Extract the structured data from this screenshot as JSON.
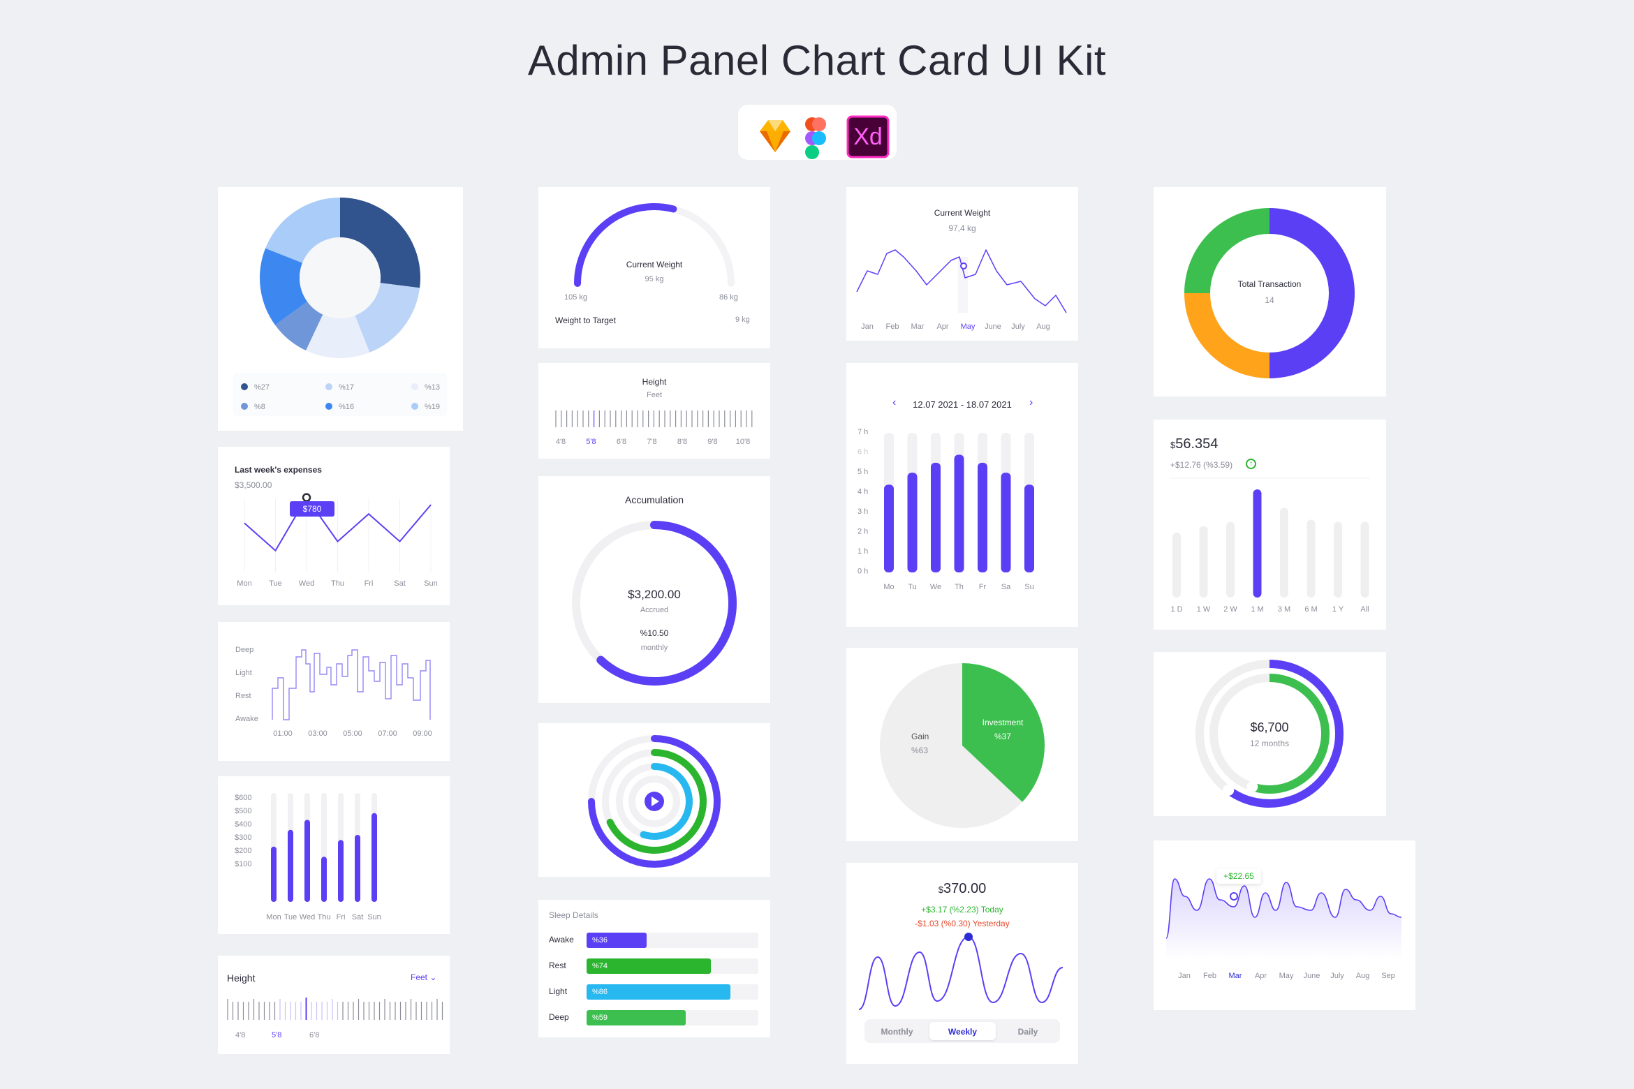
{
  "page": {
    "title": "Admin Panel Chart Card UI Kit",
    "tools": [
      "sketch-icon",
      "figma-icon",
      "xd-icon"
    ],
    "xd_label": "Xd"
  },
  "colors": {
    "accent": "#5b3ff5",
    "green": "#3dbf4f",
    "orange": "#ffa31a",
    "cyan": "#27b8f0",
    "gray": "#efefef"
  },
  "donut": {
    "chart_data": {
      "type": "pie",
      "values": [
        27,
        17,
        13,
        8,
        16,
        19
      ],
      "labels": [
        "%27",
        "%17",
        "%13",
        "%8",
        "%16",
        "%19"
      ],
      "colors": [
        "#31548f",
        "#bcd4f7",
        "#e9eefb",
        "#6f96d8",
        "#3d88f0",
        "#a9ccf8"
      ]
    },
    "legend": [
      "%27",
      "%17",
      "%13",
      "%8",
      "%16",
      "%19"
    ]
  },
  "expenses": {
    "title": "Last week's expenses",
    "amount": "$3,500.00",
    "tooltip": "$780",
    "days": [
      "Mon",
      "Tue",
      "Wed",
      "Thu",
      "Fri",
      "Sat",
      "Sun"
    ],
    "chart_data": {
      "type": "line",
      "x": [
        "Mon",
        "Tue",
        "Wed",
        "Thu",
        "Fri",
        "Sat",
        "Sun"
      ],
      "values": [
        500,
        200,
        780,
        300,
        600,
        300,
        700
      ]
    }
  },
  "sleep_step": {
    "levels": [
      "Deep",
      "Light",
      "Rest",
      "Awake"
    ],
    "times": [
      "01:00",
      "03:00",
      "05:00",
      "07:00",
      "09:00"
    ]
  },
  "bars_week": {
    "ylabels": [
      "$600",
      "$500",
      "$400",
      "$300",
      "$200",
      "$100"
    ],
    "days": [
      "Mon",
      "Tue",
      "Wed",
      "Thu",
      "Fri",
      "Sat",
      "Sun"
    ],
    "chart_data": {
      "type": "bar",
      "categories": [
        "Mon",
        "Tue",
        "Wed",
        "Thu",
        "Fri",
        "Sat",
        "Sun"
      ],
      "values": [
        330,
        430,
        490,
        270,
        370,
        400,
        530
      ],
      "ylim": [
        0,
        650
      ]
    }
  },
  "height_small": {
    "title": "Height",
    "unit": "Feet",
    "ticks": [
      "4'8",
      "5'8",
      "6'8"
    ]
  },
  "weight_gauge": {
    "title": "Current Weight",
    "value": "95 kg",
    "min": "105 kg",
    "max": "86 kg",
    "target_label": "Weight to Target",
    "target_value": "9 kg",
    "progress": 0.58
  },
  "height_ruler": {
    "title": "Height",
    "unit": "Feet",
    "ticks": [
      "4'8",
      "5'8",
      "6'8",
      "7'8",
      "8'8",
      "9'8",
      "10'8"
    ]
  },
  "accumulation": {
    "title": "Accumulation",
    "amount": "$3,200.00",
    "accrued": "Accrued",
    "rate": "%10.50",
    "period": "monthly",
    "progress": 0.62
  },
  "rings": {
    "progress": [
      0.75,
      0.68,
      0.55
    ]
  },
  "sleep_details": {
    "title": "Sleep Details",
    "rows": [
      {
        "label": "Awake",
        "value": "%36",
        "pct": 36,
        "color": "#5b3ff5"
      },
      {
        "label": "Rest",
        "value": "%74",
        "pct": 74,
        "color": "#2bb52e"
      },
      {
        "label": "Light",
        "value": "%86",
        "pct": 86,
        "color": "#27b8f0"
      },
      {
        "label": "Deep",
        "value": "%59",
        "pct": 59,
        "color": "#3dbf4f"
      }
    ]
  },
  "weight_line": {
    "title": "Current Weight",
    "value": "97,4 kg",
    "months": [
      "Jan",
      "Feb",
      "Mar",
      "Apr",
      "May",
      "June",
      "July",
      "Aug"
    ],
    "active": "May"
  },
  "hours_bars": {
    "range": "12.07 2021 - 18.07 2021",
    "prev": "‹",
    "next": "›",
    "ylabels": [
      "7 h",
      "6 h",
      "5 h",
      "4 h",
      "3 h",
      "2 h",
      "1 h",
      "0 h"
    ],
    "days": [
      "Mo",
      "Tu",
      "We",
      "Th",
      "Fr",
      "Sa",
      "Su"
    ],
    "chart_data": {
      "type": "bar",
      "categories": [
        "Mo",
        "Tu",
        "We",
        "Th",
        "Fr",
        "Sa",
        "Su"
      ],
      "values": [
        4.4,
        5.0,
        5.5,
        5.9,
        5.5,
        5.0,
        4.4
      ],
      "ylim": [
        0,
        7
      ]
    }
  },
  "pie": {
    "chart_data": {
      "type": "pie",
      "labels": [
        "Gain",
        "Investment"
      ],
      "values": [
        63,
        37
      ]
    },
    "gain_label": "Gain",
    "gain_value": "%63",
    "inv_label": "Investment",
    "inv_value": "%37"
  },
  "price_wave": {
    "currency": "$",
    "amount": "370.00",
    "today": "+$3.17 (%2.23) Today",
    "yesterday": "-$1.03 (%0.30) Yesterday",
    "tabs": [
      "Monthly",
      "Weekly",
      "Daily"
    ],
    "active_tab": "Weekly"
  },
  "transaction": {
    "title": "Total Transaction",
    "value": "14",
    "chart_data": {
      "type": "pie",
      "values": [
        50,
        25,
        25
      ],
      "colors": [
        "#5b3ff5",
        "#ffa31a",
        "#3dbf4f"
      ]
    }
  },
  "stock_bars": {
    "currency": "$",
    "amount": "56.354",
    "change": "+$12.76 (%3.59)",
    "periods": [
      "1 D",
      "1 W",
      "2 W",
      "1 M",
      "3 M",
      "6 M",
      "1 Y",
      "All"
    ],
    "chart_data": {
      "type": "bar",
      "categories": [
        "1 D",
        "1 W",
        "2 W",
        "1 M",
        "3 M",
        "6 M",
        "1 Y",
        "All"
      ],
      "values": [
        60,
        66,
        70,
        100,
        83,
        72,
        70,
        70
      ],
      "highlight": "1 M"
    }
  },
  "double_ring": {
    "amount": "$6,700",
    "period": "12 months",
    "outer": 0.6,
    "inner": 0.55
  },
  "area_wave": {
    "tooltip": "+$22.65",
    "months": [
      "Jan",
      "Feb",
      "Mar",
      "Apr",
      "May",
      "June",
      "July",
      "Aug",
      "Sep"
    ],
    "active": "Mar"
  }
}
